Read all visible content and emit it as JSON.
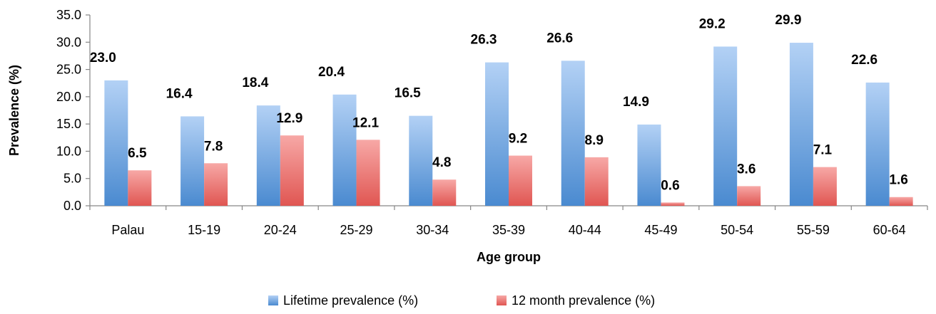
{
  "chart_data": {
    "type": "bar",
    "title": "",
    "xlabel": "Age group",
    "ylabel": "Prevalence (%)",
    "ylim": [
      0,
      35
    ],
    "ytick_step": 5,
    "ytick_decimals": 1,
    "grid": false,
    "legend_position": "bottom",
    "categories": [
      "Palau",
      "15-19",
      "20-24",
      "25-29",
      "30-34",
      "35-39",
      "40-44",
      "45-49",
      "50-54",
      "55-59",
      "60-64"
    ],
    "series": [
      {
        "name": "Lifetime prevalence (%)",
        "color": "#5b9bd5",
        "values": [
          23.0,
          16.4,
          18.4,
          20.4,
          16.5,
          26.3,
          26.6,
          14.9,
          29.2,
          29.9,
          22.6
        ],
        "labels": [
          "23.0",
          "16.4",
          "18.4",
          "20.4",
          "16.5",
          "26.3",
          "26.6",
          "14.9",
          "29.2",
          "29.9",
          "22.6"
        ]
      },
      {
        "name": "12 month prevalence (%)",
        "color": "#e9605d",
        "values": [
          6.5,
          7.8,
          12.9,
          12.1,
          4.8,
          9.2,
          8.9,
          0.6,
          3.6,
          7.1,
          1.6
        ],
        "labels": [
          "6.5",
          "7.8",
          "12.9",
          "12.1",
          "4.8",
          "9.2",
          "8.9",
          "0.6",
          "3.6",
          "7.1",
          "1.6"
        ]
      }
    ]
  }
}
